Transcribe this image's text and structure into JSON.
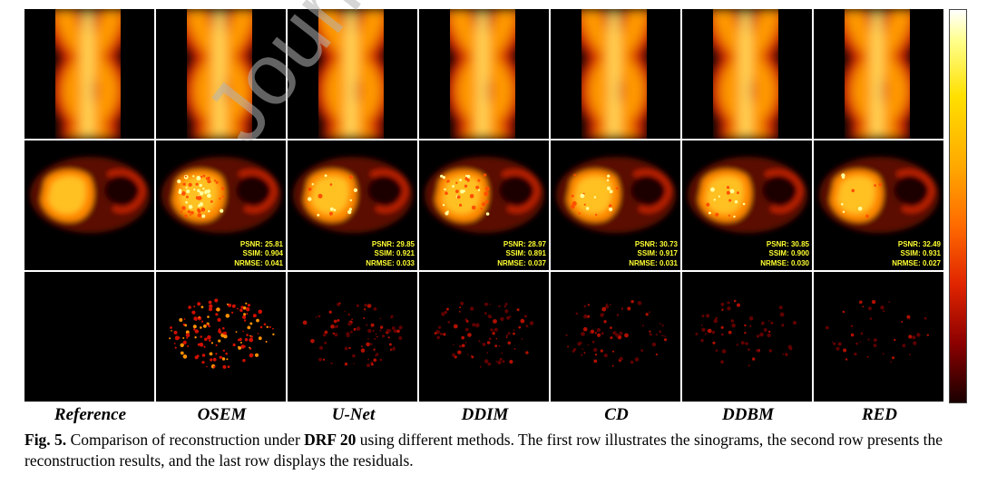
{
  "figure": {
    "columns": [
      "Reference",
      "OSEM",
      "U-Net",
      "DDIM",
      "CD",
      "DDBM",
      "RED"
    ],
    "metrics": [
      null,
      {
        "psnr": "PSNR:  25.81",
        "ssim": "SSIM:  0.904",
        "nrmse": "NRMSE:  0.041"
      },
      {
        "psnr": "PSNR:  29.85",
        "ssim": "SSIM:  0.921",
        "nrmse": "NRMSE:  0.033"
      },
      {
        "psnr": "PSNR:  28.97",
        "ssim": "SSIM:  0.891",
        "nrmse": "NRMSE:  0.037"
      },
      {
        "psnr": "PSNR:  30.73",
        "ssim": "SSIM:  0.917",
        "nrmse": "NRMSE:  0.031"
      },
      {
        "psnr": "PSNR:  30.85",
        "ssim": "SSIM:  0.900",
        "nrmse": "NRMSE:  0.030"
      },
      {
        "psnr": "PSNR:  32.49",
        "ssim": "SSIM:  0.931",
        "nrmse": "NRMSE:  0.027"
      }
    ],
    "residual_intensity": [
      0,
      1.0,
      0.6,
      0.6,
      0.5,
      0.4,
      0.3
    ],
    "colormap": [
      "#000000",
      "#8c0000",
      "#e02400",
      "#ff6a00",
      "#ffa800",
      "#ffe000",
      "#ffffff"
    ]
  },
  "caption": {
    "prefix": "Fig. 5.",
    "text1": " Comparison of reconstruction under ",
    "bold": "DRF 20",
    "text2": " using different methods. The first row illustrates the sinograms, the second row presents the reconstruction results, and the last row displays the residuals."
  },
  "watermark": "Journal Pre-proof"
}
